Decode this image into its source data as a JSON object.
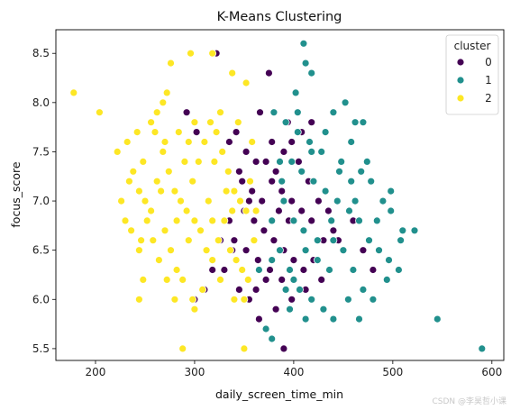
{
  "chart_data": {
    "type": "scatter",
    "title": "K-Means Clustering",
    "xlabel": "daily_screen_time_min",
    "ylabel": "focus_score",
    "xlim": [
      160,
      612
    ],
    "ylim": [
      5.38,
      8.74
    ],
    "xticks": [
      "200",
      "300",
      "400",
      "500",
      "600"
    ],
    "yticks": [
      "5.5",
      "6.0",
      "6.5",
      "7.0",
      "7.5",
      "8.0",
      "8.5"
    ],
    "grid": false,
    "legend": {
      "title": "cluster",
      "placement": "top-right"
    },
    "series": [
      {
        "name": "0",
        "color": "#440154",
        "points": [
          [
            322,
            8.5
          ],
          [
            292,
            7.9
          ],
          [
            302,
            7.7
          ],
          [
            335,
            7.6
          ],
          [
            342,
            7.7
          ],
          [
            352,
            7.5
          ],
          [
            362,
            7.4
          ],
          [
            372,
            7.4
          ],
          [
            382,
            7.3
          ],
          [
            390,
            7.5
          ],
          [
            398,
            7.6
          ],
          [
            408,
            7.7
          ],
          [
            418,
            7.8
          ],
          [
            375,
            8.3
          ],
          [
            348,
            7.2
          ],
          [
            358,
            7.1
          ],
          [
            368,
            7.0
          ],
          [
            378,
            7.2
          ],
          [
            388,
            7.1
          ],
          [
            398,
            7.0
          ],
          [
            408,
            6.9
          ],
          [
            418,
            6.8
          ],
          [
            430,
            6.6
          ],
          [
            440,
            6.7
          ],
          [
            450,
            6.5
          ],
          [
            350,
            6.9
          ],
          [
            360,
            6.8
          ],
          [
            370,
            6.7
          ],
          [
            380,
            6.6
          ],
          [
            390,
            6.5
          ],
          [
            400,
            6.4
          ],
          [
            410,
            6.3
          ],
          [
            420,
            6.4
          ],
          [
            340,
            6.6
          ],
          [
            352,
            6.5
          ],
          [
            364,
            6.4
          ],
          [
            376,
            6.3
          ],
          [
            388,
            6.2
          ],
          [
            398,
            6.0
          ],
          [
            310,
            6.1
          ],
          [
            330,
            6.3
          ],
          [
            345,
            6.1
          ],
          [
            355,
            6.0
          ],
          [
            365,
            5.8
          ],
          [
            390,
            5.5
          ],
          [
            300,
            6.0
          ],
          [
            318,
            6.3
          ],
          [
            335,
            6.8
          ],
          [
            345,
            7.3
          ],
          [
            355,
            7.0
          ],
          [
            385,
            6.9
          ],
          [
            395,
            6.8
          ],
          [
            405,
            7.4
          ],
          [
            415,
            7.2
          ],
          [
            425,
            7.0
          ],
          [
            435,
            6.9
          ],
          [
            445,
            6.6
          ],
          [
            460,
            6.8
          ],
          [
            470,
            6.5
          ],
          [
            480,
            6.3
          ],
          [
            326,
            6.6
          ],
          [
            338,
            6.5
          ],
          [
            372,
            6.2
          ],
          [
            382,
            5.9
          ],
          [
            412,
            6.1
          ],
          [
            428,
            6.2
          ],
          [
            378,
            7.6
          ],
          [
            366,
            7.9
          ],
          [
            394,
            7.8
          ],
          [
            362,
            6.1
          ]
        ]
      },
      {
        "name": "1",
        "color": "#21908d",
        "points": [
          [
            410,
            8.6
          ],
          [
            412,
            8.4
          ],
          [
            418,
            8.3
          ],
          [
            402,
            8.1
          ],
          [
            380,
            7.9
          ],
          [
            392,
            7.8
          ],
          [
            404,
            7.7
          ],
          [
            416,
            7.6
          ],
          [
            428,
            7.5
          ],
          [
            440,
            7.9
          ],
          [
            452,
            8.0
          ],
          [
            462,
            7.8
          ],
          [
            470,
            7.8
          ],
          [
            448,
            7.4
          ],
          [
            458,
            7.6
          ],
          [
            468,
            7.3
          ],
          [
            478,
            7.2
          ],
          [
            490,
            7.0
          ],
          [
            498,
            7.1
          ],
          [
            510,
            6.7
          ],
          [
            522,
            6.7
          ],
          [
            408,
            7.3
          ],
          [
            420,
            7.2
          ],
          [
            432,
            7.1
          ],
          [
            444,
            7.0
          ],
          [
            456,
            6.9
          ],
          [
            466,
            6.8
          ],
          [
            476,
            6.6
          ],
          [
            486,
            6.5
          ],
          [
            496,
            6.4
          ],
          [
            506,
            6.3
          ],
          [
            440,
            6.6
          ],
          [
            450,
            6.5
          ],
          [
            460,
            6.3
          ],
          [
            470,
            6.1
          ],
          [
            480,
            6.0
          ],
          [
            390,
            7.0
          ],
          [
            400,
            6.8
          ],
          [
            410,
            6.7
          ],
          [
            400,
            6.2
          ],
          [
            412,
            6.5
          ],
          [
            424,
            6.4
          ],
          [
            436,
            6.3
          ],
          [
            386,
            6.5
          ],
          [
            396,
            6.3
          ],
          [
            406,
            6.1
          ],
          [
            418,
            6.0
          ],
          [
            430,
            5.9
          ],
          [
            440,
            5.8
          ],
          [
            455,
            6.0
          ],
          [
            466,
            5.8
          ],
          [
            545,
            5.8
          ],
          [
            590,
            5.5
          ],
          [
            378,
            5.6
          ],
          [
            372,
            5.7
          ],
          [
            365,
            6.3
          ],
          [
            378,
            6.8
          ],
          [
            388,
            7.2
          ],
          [
            398,
            7.4
          ],
          [
            418,
            7.5
          ],
          [
            432,
            7.7
          ],
          [
            446,
            7.3
          ],
          [
            458,
            7.2
          ],
          [
            498,
            6.9
          ],
          [
            508,
            6.6
          ],
          [
            378,
            6.4
          ],
          [
            392,
            6.1
          ],
          [
            424,
            6.6
          ],
          [
            438,
            6.8
          ],
          [
            462,
            7.0
          ],
          [
            474,
            7.4
          ],
          [
            484,
            6.8
          ],
          [
            494,
            6.2
          ],
          [
            396,
            5.9
          ],
          [
            412,
            5.8
          ],
          [
            386,
            7.4
          ],
          [
            404,
            7.9
          ]
        ]
      },
      {
        "name": "2",
        "color": "#fde725",
        "points": [
          [
            178,
            8.1
          ],
          [
            204,
            7.9
          ],
          [
            222,
            7.5
          ],
          [
            232,
            7.6
          ],
          [
            242,
            7.7
          ],
          [
            248,
            7.4
          ],
          [
            256,
            7.8
          ],
          [
            262,
            7.9
          ],
          [
            268,
            8.0
          ],
          [
            272,
            8.1
          ],
          [
            276,
            8.4
          ],
          [
            296,
            8.5
          ],
          [
            318,
            8.5
          ],
          [
            338,
            8.3
          ],
          [
            352,
            8.2
          ],
          [
            238,
            7.3
          ],
          [
            244,
            7.1
          ],
          [
            250,
            7.0
          ],
          [
            256,
            6.9
          ],
          [
            262,
            7.2
          ],
          [
            268,
            7.5
          ],
          [
            274,
            7.3
          ],
          [
            280,
            7.1
          ],
          [
            286,
            7.0
          ],
          [
            292,
            6.9
          ],
          [
            298,
            7.2
          ],
          [
            304,
            7.4
          ],
          [
            310,
            7.6
          ],
          [
            316,
            7.8
          ],
          [
            322,
            7.7
          ],
          [
            328,
            7.5
          ],
          [
            334,
            7.3
          ],
          [
            340,
            7.1
          ],
          [
            346,
            7.0
          ],
          [
            352,
            6.9
          ],
          [
            230,
            6.8
          ],
          [
            236,
            6.7
          ],
          [
            244,
            6.5
          ],
          [
            252,
            6.8
          ],
          [
            258,
            6.6
          ],
          [
            264,
            6.4
          ],
          [
            270,
            6.7
          ],
          [
            276,
            6.5
          ],
          [
            282,
            6.3
          ],
          [
            288,
            6.2
          ],
          [
            294,
            6.6
          ],
          [
            300,
            6.8
          ],
          [
            306,
            6.7
          ],
          [
            312,
            6.5
          ],
          [
            318,
            6.4
          ],
          [
            324,
            6.6
          ],
          [
            330,
            6.8
          ],
          [
            336,
            6.5
          ],
          [
            342,
            6.4
          ],
          [
            348,
            6.3
          ],
          [
            354,
            6.2
          ],
          [
            360,
            6.6
          ],
          [
            244,
            6.0
          ],
          [
            280,
            6.0
          ],
          [
            298,
            6.0
          ],
          [
            300,
            5.9
          ],
          [
            288,
            5.5
          ],
          [
            350,
            5.5
          ],
          [
            350,
            6.0
          ],
          [
            260,
            7.7
          ],
          [
            284,
            7.7
          ],
          [
            300,
            7.8
          ],
          [
            326,
            7.9
          ],
          [
            344,
            7.8
          ],
          [
            358,
            7.6
          ],
          [
            226,
            7.0
          ],
          [
            234,
            7.2
          ],
          [
            266,
            7.1
          ],
          [
            290,
            7.4
          ],
          [
            314,
            7.0
          ],
          [
            338,
            6.9
          ],
          [
            356,
            7.2
          ],
          [
            248,
            6.2
          ],
          [
            272,
            6.2
          ],
          [
            308,
            6.1
          ],
          [
            326,
            6.2
          ],
          [
            340,
            6.0
          ],
          [
            362,
            6.9
          ],
          [
            270,
            7.6
          ],
          [
            294,
            7.6
          ],
          [
            320,
            7.4
          ],
          [
            332,
            7.1
          ],
          [
            246,
            6.6
          ],
          [
            282,
            6.8
          ],
          [
            318,
            6.8
          ]
        ]
      }
    ]
  },
  "watermark": "CSDN @李昊哲小课"
}
